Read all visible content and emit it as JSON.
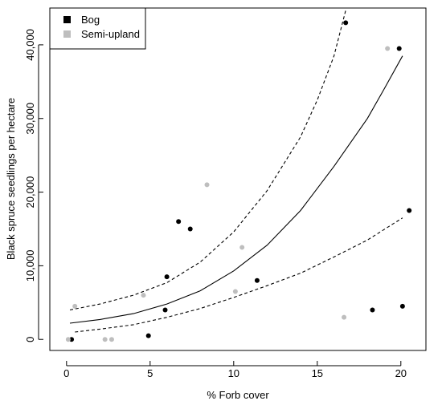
{
  "chart_data": {
    "type": "scatter",
    "title": "",
    "xlabel": "% Forb cover",
    "ylabel": "Black spruce seedlings per hectare",
    "xlim": [
      -1,
      21.5
    ],
    "ylim": [
      -1500,
      45000
    ],
    "x_ticks": [
      0,
      5,
      10,
      15,
      20
    ],
    "x_tick_labels": [
      "0",
      "5",
      "10",
      "15",
      "20"
    ],
    "y_ticks": [
      0,
      10000,
      20000,
      30000,
      40000
    ],
    "y_tick_labels": [
      "0",
      "10,000",
      "20,000",
      "30,000",
      "40,000"
    ],
    "grid": false,
    "legend": {
      "placement": "top-left",
      "entries": [
        "Bog",
        "Semi-upland"
      ]
    },
    "series": [
      {
        "name": "Bog",
        "color": "#000000",
        "marker": "circle",
        "points": [
          {
            "x": 0.3,
            "y": 0
          },
          {
            "x": 4.9,
            "y": 500
          },
          {
            "x": 5.9,
            "y": 4000
          },
          {
            "x": 6.0,
            "y": 8500
          },
          {
            "x": 6.7,
            "y": 16000
          },
          {
            "x": 7.4,
            "y": 15000
          },
          {
            "x": 11.4,
            "y": 8000
          },
          {
            "x": 16.7,
            "y": 43000
          },
          {
            "x": 18.3,
            "y": 4000
          },
          {
            "x": 19.9,
            "y": 39500
          },
          {
            "x": 20.1,
            "y": 4500
          },
          {
            "x": 20.5,
            "y": 17500
          }
        ]
      },
      {
        "name": "Semi-upland",
        "color": "#bebebe",
        "marker": "circle",
        "points": [
          {
            "x": 0.1,
            "y": 0
          },
          {
            "x": 0.5,
            "y": 4500
          },
          {
            "x": 2.3,
            "y": 0
          },
          {
            "x": 2.7,
            "y": 0
          },
          {
            "x": 4.6,
            "y": 6000
          },
          {
            "x": 8.4,
            "y": 21000
          },
          {
            "x": 10.1,
            "y": 6500
          },
          {
            "x": 10.5,
            "y": 12500
          },
          {
            "x": 16.6,
            "y": 3000
          },
          {
            "x": 19.2,
            "y": 39500
          }
        ]
      }
    ],
    "lines": [
      {
        "role": "fitted",
        "style": "solid",
        "color": "#000000",
        "points": [
          {
            "x": 0.2,
            "y": 2200
          },
          {
            "x": 2,
            "y": 2700
          },
          {
            "x": 4,
            "y": 3500
          },
          {
            "x": 6,
            "y": 4800
          },
          {
            "x": 8,
            "y": 6600
          },
          {
            "x": 10,
            "y": 9300
          },
          {
            "x": 12,
            "y": 12800
          },
          {
            "x": 14,
            "y": 17500
          },
          {
            "x": 16,
            "y": 23500
          },
          {
            "x": 18,
            "y": 30000
          },
          {
            "x": 19,
            "y": 34000
          },
          {
            "x": 20.1,
            "y": 38500
          }
        ]
      },
      {
        "role": "upper-bound",
        "style": "dashed",
        "color": "#000000",
        "points": [
          {
            "x": 0.2,
            "y": 4000
          },
          {
            "x": 2,
            "y": 4800
          },
          {
            "x": 4,
            "y": 6000
          },
          {
            "x": 6,
            "y": 7700
          },
          {
            "x": 8,
            "y": 10500
          },
          {
            "x": 10,
            "y": 14600
          },
          {
            "x": 12,
            "y": 20200
          },
          {
            "x": 14,
            "y": 27500
          },
          {
            "x": 15,
            "y": 32500
          },
          {
            "x": 16,
            "y": 38500
          },
          {
            "x": 16.7,
            "y": 44700
          }
        ]
      },
      {
        "role": "lower-bound",
        "style": "dashed",
        "color": "#000000",
        "points": [
          {
            "x": 0.5,
            "y": 1000
          },
          {
            "x": 2,
            "y": 1400
          },
          {
            "x": 4,
            "y": 2000
          },
          {
            "x": 6,
            "y": 3000
          },
          {
            "x": 8,
            "y": 4200
          },
          {
            "x": 10,
            "y": 5700
          },
          {
            "x": 12,
            "y": 7300
          },
          {
            "x": 14,
            "y": 9000
          },
          {
            "x": 16,
            "y": 11200
          },
          {
            "x": 18,
            "y": 13500
          },
          {
            "x": 20.1,
            "y": 16500
          }
        ]
      }
    ]
  }
}
